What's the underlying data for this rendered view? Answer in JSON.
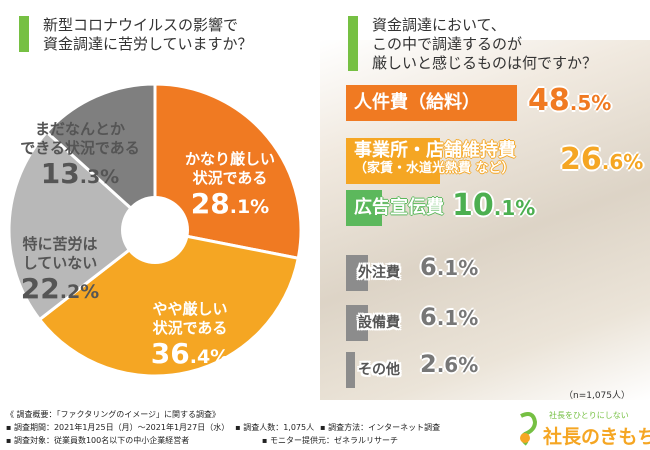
{
  "left": {
    "question": "新型コロナウイルスの影響で\n資金調達に苦労していますか？"
  },
  "right": {
    "question": "資金調達において、\nこの中で調達するのが\n厳しいと感じるものは何ですか？",
    "note": "（n=1,075人）"
  },
  "chart_data": [
    {
      "type": "pie",
      "title": "新型コロナウイルスの影響で資金調達に苦労していますか？",
      "start": "12 o'clock, clockwise",
      "donut_hole": true,
      "slices": [
        {
          "label": "かなり厳しい\n状況である",
          "value": 28.1,
          "color": "#f07a22"
        },
        {
          "label": "やや厳しい\n状況である",
          "value": 36.4,
          "color": "#f5a623"
        },
        {
          "label": "特に苦労は\nしていない",
          "value": 22.2,
          "color": "#b8b8b8"
        },
        {
          "label": "まだなんとか\nできる状況である",
          "value": 13.3,
          "color": "#7f7f7f"
        }
      ]
    },
    {
      "type": "bar",
      "orientation": "horizontal",
      "title": "資金調達において、この中で調達するのが厳しいと感じるものは何ですか？",
      "unit": "%",
      "categories": [
        "人件費（給料）",
        "事業所・店舗維持費\n（家賃・水道光熱費 など）",
        "広告宣伝費",
        "外注費",
        "設備費",
        "その他"
      ],
      "values": [
        48.5,
        26.6,
        10.1,
        6.1,
        6.1,
        2.6
      ],
      "colors": [
        "#f07a22",
        "#f5a623",
        "#5cb85c",
        "#8c8c8c",
        "#8c8c8c",
        "#8c8c8c"
      ]
    }
  ],
  "footer": {
    "title": "《 調査概要：「ファクタリングのイメージ」に関する調査》",
    "period": "▪ 調査期間：2021年1月25日（月）～2021年1月27日（水）",
    "count": "▪ 調査人数：1,075人",
    "method": "▪ 調査方法：インターネット調査",
    "target": "▪ 調査対象：従業員数100名以下の中小企業経営者",
    "provider": "▪ モニター提供元：ゼネラルリサーチ"
  },
  "logo": {
    "tagline": "社長をひとりにしない",
    "name": "社長のきもち"
  }
}
